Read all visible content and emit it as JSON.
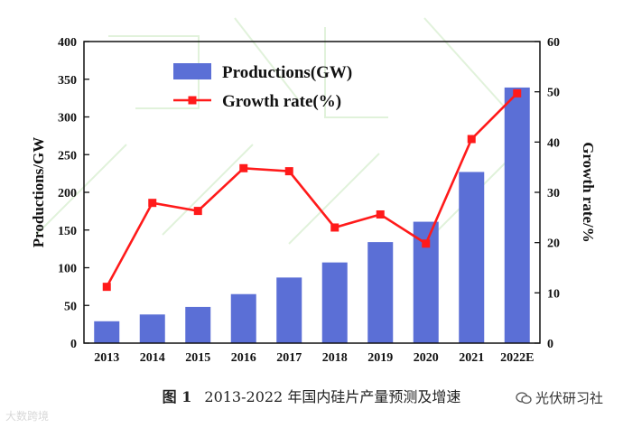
{
  "chart_data": {
    "type": "bar+line",
    "categories": [
      "2013",
      "2014",
      "2015",
      "2016",
      "2017",
      "2018",
      "2019",
      "2020",
      "2021",
      "2022E"
    ],
    "series": [
      {
        "name": "Productions(GW)",
        "type": "bar",
        "axis": "left",
        "color": "#5b6fd6",
        "values": [
          29,
          38,
          48,
          65,
          87,
          107,
          134,
          161,
          227,
          339
        ]
      },
      {
        "name": "Growth rate(%)",
        "type": "line",
        "axis": "right",
        "color": "#ff1a1a",
        "values": [
          11.2,
          27.9,
          26.3,
          34.8,
          34.2,
          23.0,
          25.6,
          19.8,
          40.6,
          49.7
        ]
      }
    ],
    "ylabel": "Productions/GW",
    "y2label": "Growth rate/%",
    "ylim": [
      0,
      400
    ],
    "y2lim": [
      0,
      60
    ],
    "yticks": [
      0,
      50,
      100,
      150,
      200,
      250,
      300,
      350,
      400
    ],
    "y2ticks": [
      0,
      10,
      20,
      30,
      40,
      50,
      60
    ],
    "legend_position": "top-left"
  },
  "caption": {
    "number": "图 1",
    "text": "2013-2022 年国内硅片产量预测及增速"
  },
  "source": "光伏研习社",
  "watermark": "大数跨境",
  "colors": {
    "bar": "#5b6fd6",
    "line": "#ff1a1a",
    "frame": "#111111"
  }
}
